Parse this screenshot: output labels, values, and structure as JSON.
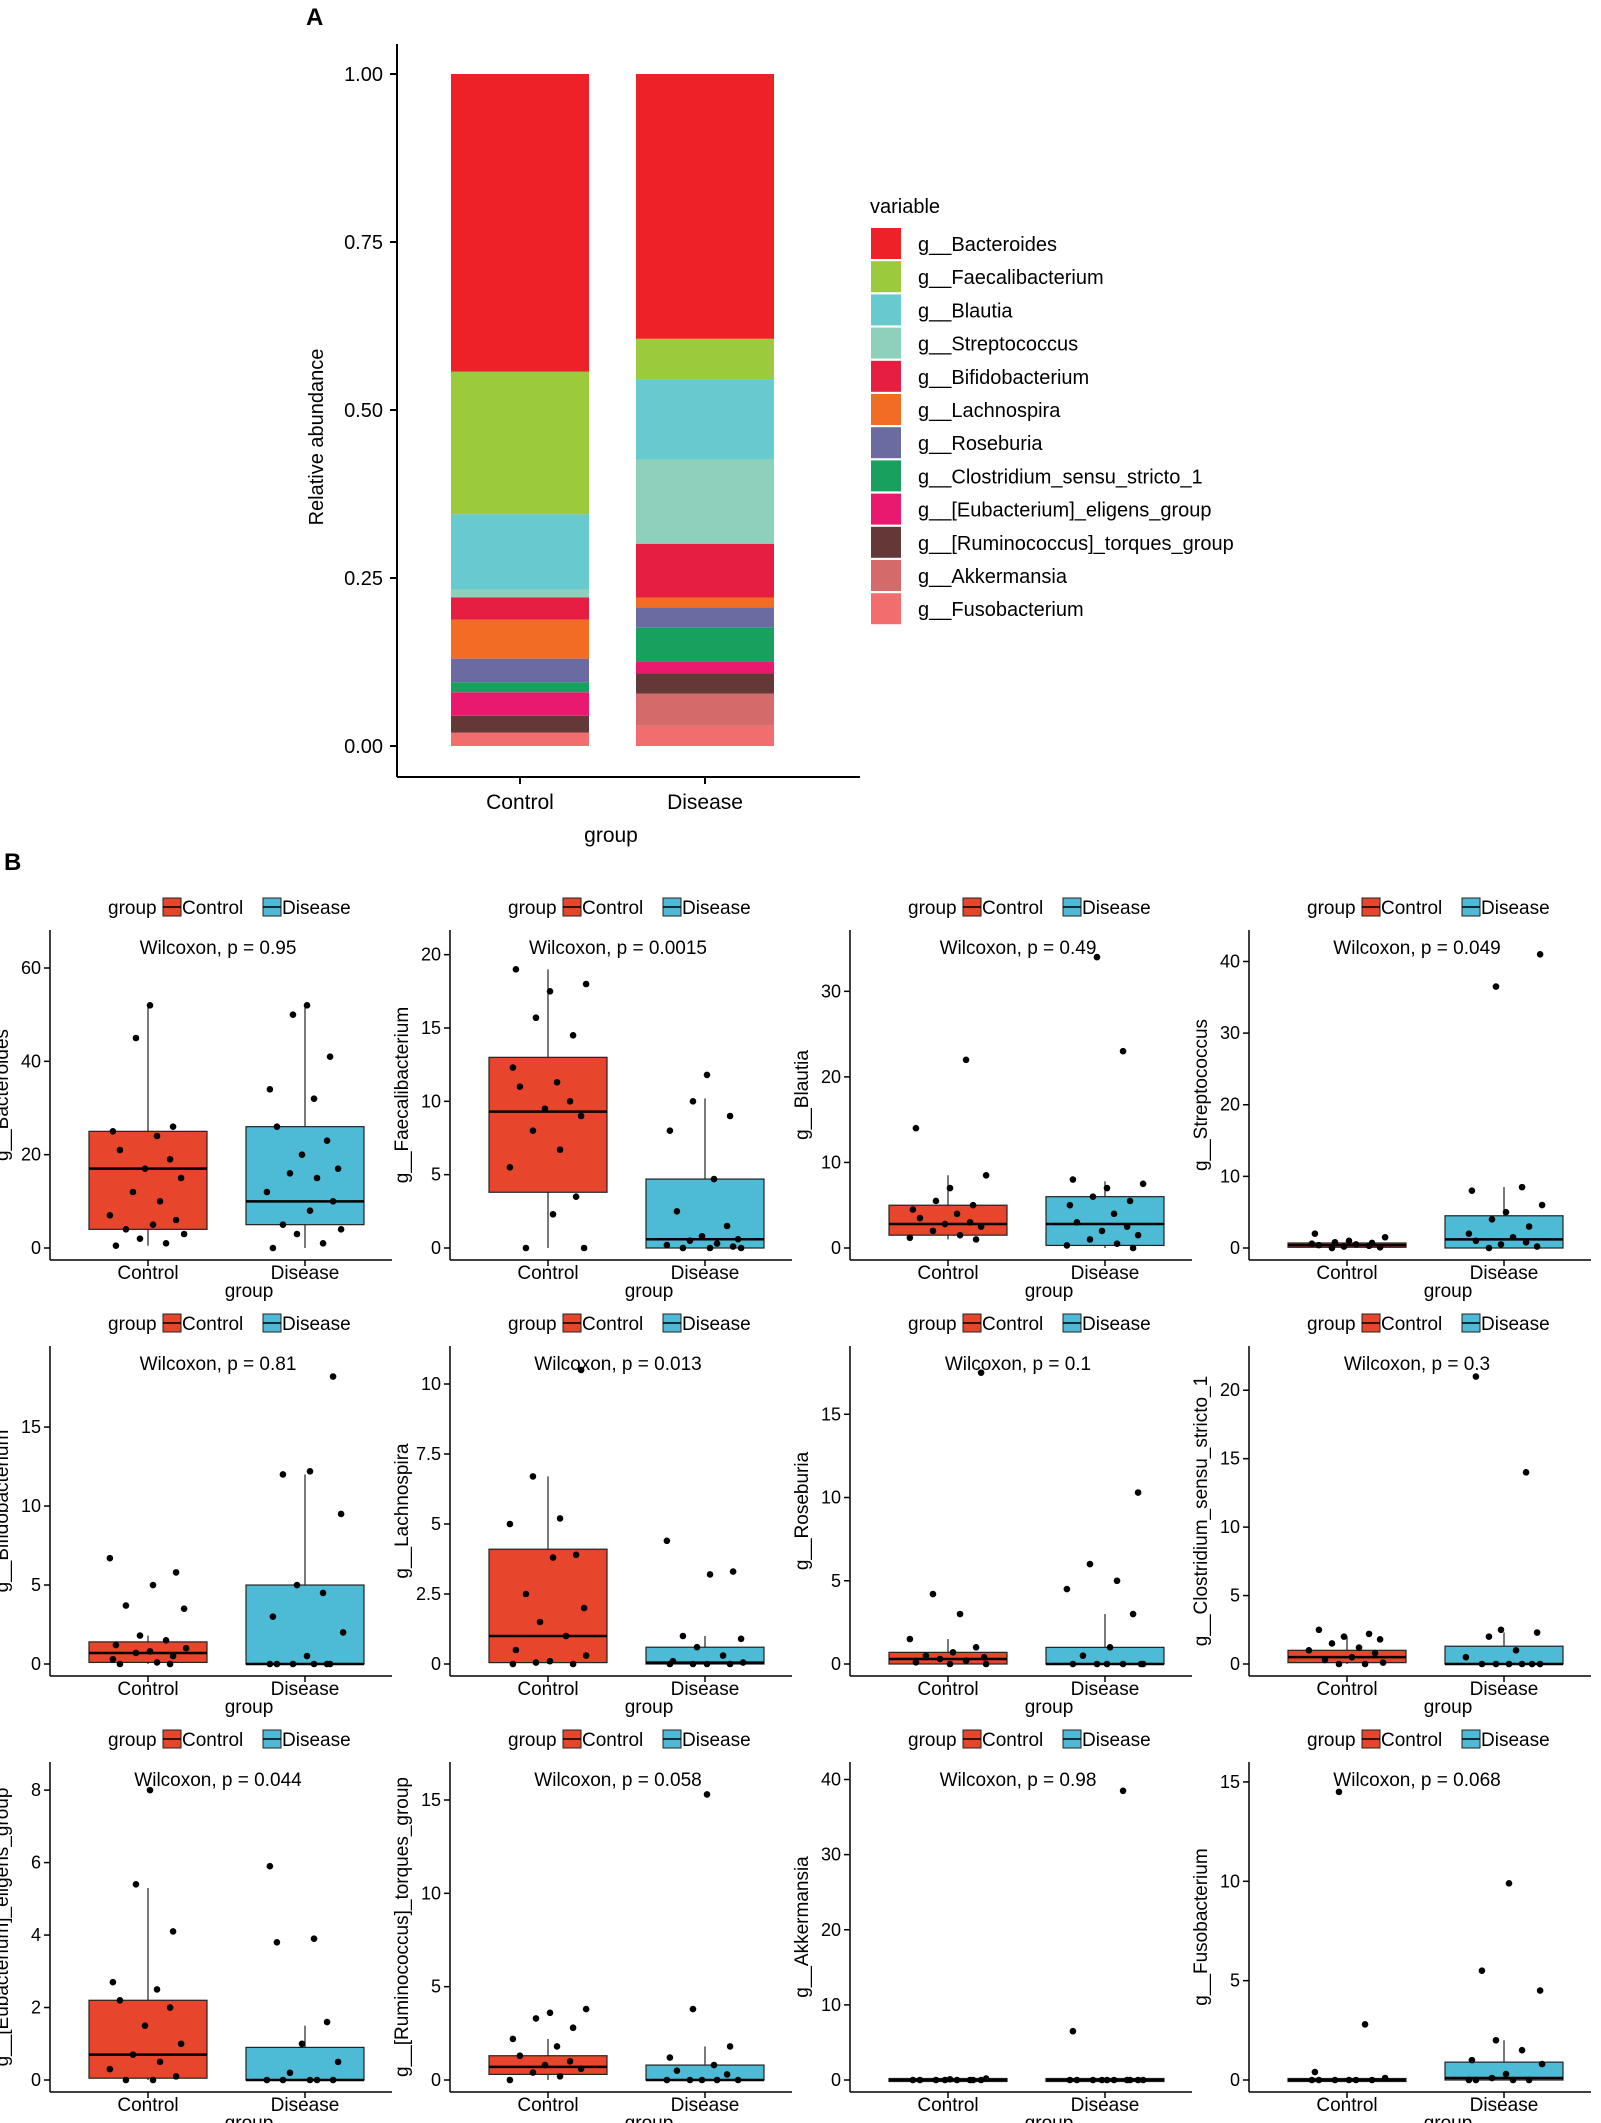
{
  "panel_labels": {
    "a": "A",
    "b": "B"
  },
  "chart_data": [
    {
      "type": "stacked_bar",
      "panel": "A",
      "title": "",
      "xlabel": "group",
      "ylabel": "Relative abundance",
      "ylim": [
        0,
        1
      ],
      "yticks": [
        "0.00",
        "0.25",
        "0.50",
        "0.75",
        "1.00"
      ],
      "categories": [
        "Control",
        "Disease"
      ],
      "legend_title": "variable",
      "legend_position": "right",
      "series": [
        {
          "name": "g__Fusobacterium",
          "color": "#F26D6D",
          "values": [
            0.02,
            0.03
          ]
        },
        {
          "name": "g__Akkermansia",
          "color": "#D46A6A",
          "values": [
            0.0,
            0.048
          ]
        },
        {
          "name": "g__[Ruminococcus]_torques_group",
          "color": "#633837",
          "values": [
            0.025,
            0.03
          ]
        },
        {
          "name": "g__[Eubacterium]_eligens_group",
          "color": "#E8196E",
          "values": [
            0.035,
            0.018
          ]
        },
        {
          "name": "g__Clostridium_sensu_stricto_1",
          "color": "#17A05E",
          "values": [
            0.015,
            0.05
          ]
        },
        {
          "name": "g__Roseburia",
          "color": "#6B6BA1",
          "values": [
            0.035,
            0.03
          ]
        },
        {
          "name": "g__Lachnospira",
          "color": "#F26D23",
          "values": [
            0.058,
            0.015
          ]
        },
        {
          "name": "g__Bifidobacterium",
          "color": "#E51E42",
          "values": [
            0.033,
            0.08
          ]
        },
        {
          "name": "g__Streptococcus",
          "color": "#8DD1BD",
          "values": [
            0.012,
            0.125
          ]
        },
        {
          "name": "g__Blautia",
          "color": "#66CACE",
          "values": [
            0.112,
            0.12
          ]
        },
        {
          "name": "g__Faecalibacterium",
          "color": "#9BCA3C",
          "values": [
            0.212,
            0.06
          ]
        },
        {
          "name": "g__Bacteroides",
          "color": "#EE2128",
          "values": [
            0.443,
            0.394
          ]
        }
      ]
    },
    {
      "type": "boxplot_grid",
      "panel": "B",
      "xlabel": "group",
      "categories": [
        "Control",
        "Disease"
      ],
      "legend_title": "group",
      "legend_position": "top",
      "colors": {
        "Control": "#E8462C",
        "Disease": "#4DBBD5"
      },
      "panels": [
        {
          "ylabel": "g__Bacteroides",
          "test": "Wilcoxon, p = 0.95",
          "ylim": [
            0,
            66
          ],
          "ticks": [
            0,
            20,
            40,
            60
          ],
          "boxes": [
            {
              "q1": 4,
              "median": 17,
              "q3": 25,
              "lo": 0.5,
              "hi": 52
            },
            {
              "q1": 5,
              "median": 10,
              "q3": 26,
              "lo": 0,
              "hi": 52
            }
          ],
          "points": [
            [
              0.5,
              1,
              2,
              3,
              4,
              5,
              6,
              7,
              10,
              12,
              15,
              17,
              19,
              21,
              24,
              25,
              26,
              45,
              52
            ],
            [
              0,
              1,
              3,
              4,
              5,
              8,
              10,
              12,
              15,
              16,
              17,
              20,
              23,
              26,
              32,
              34,
              41,
              50,
              52
            ]
          ]
        },
        {
          "ylabel": "g__Faecalibacterium",
          "test": "Wilcoxon, p = 0.0015",
          "ylim": [
            0,
            21
          ],
          "ticks": [
            0,
            5,
            10,
            15,
            20
          ],
          "boxes": [
            {
              "q1": 3.8,
              "median": 9.3,
              "q3": 13,
              "lo": 0,
              "hi": 19
            },
            {
              "q1": 0,
              "median": 0.6,
              "q3": 4.7,
              "lo": 0,
              "hi": 10.2
            }
          ],
          "points": [
            [
              0,
              0,
              2.3,
              3.5,
              5.5,
              6.7,
              8,
              9,
              9.5,
              10,
              11,
              11.3,
              12.3,
              14.5,
              15.7,
              17.5,
              18,
              19
            ],
            [
              0,
              0,
              0,
              0.1,
              0.2,
              0.3,
              0.5,
              0.6,
              0.8,
              1.5,
              2.5,
              4.7,
              8,
              9,
              10,
              11.8
            ]
          ]
        },
        {
          "ylabel": "g__Blautia",
          "test": "Wilcoxon, p = 0.49",
          "ylim": [
            0,
            36
          ],
          "ticks": [
            0,
            10,
            20,
            30
          ],
          "boxes": [
            {
              "q1": 1.5,
              "median": 2.8,
              "q3": 5,
              "lo": 1,
              "hi": 8.5
            },
            {
              "q1": 0.3,
              "median": 2.8,
              "q3": 6,
              "lo": 0,
              "hi": 7.8
            }
          ],
          "points": [
            [
              1,
              1.2,
              1.5,
              2,
              2.5,
              2.8,
              3,
              3.5,
              4,
              4.5,
              5,
              5.5,
              7,
              8.5,
              14,
              22
            ],
            [
              0,
              0.3,
              0.5,
              1,
              1.5,
              2,
              2.5,
              3,
              4,
              5,
              5.5,
              6,
              7,
              7.5,
              8,
              23,
              34
            ]
          ]
        },
        {
          "ylabel": "g__Streptococcus",
          "test": "Wilcoxon, p = 0.049",
          "ylim": [
            0,
            43
          ],
          "ticks": [
            0,
            10,
            20,
            30,
            40
          ],
          "boxes": [
            {
              "q1": 0.1,
              "median": 0.4,
              "q3": 0.7,
              "lo": 0,
              "hi": 1
            },
            {
              "q1": 0,
              "median": 1.2,
              "q3": 4.5,
              "lo": 0,
              "hi": 8.5
            }
          ],
          "points": [
            [
              0,
              0.1,
              0.2,
              0.3,
              0.4,
              0.5,
              0.6,
              0.7,
              0.8,
              1,
              1.5,
              2
            ],
            [
              0,
              0.2,
              0.5,
              0.8,
              1,
              1.5,
              2,
              3,
              4,
              5,
              6,
              8,
              8.5,
              36.5,
              41
            ]
          ]
        },
        {
          "ylabel": "g__Bifidobacterium",
          "test": "Wilcoxon, p = 0.81",
          "ylim": [
            0,
            19.5
          ],
          "ticks": [
            0,
            5,
            10,
            15
          ],
          "boxes": [
            {
              "q1": 0.1,
              "median": 0.7,
              "q3": 1.4,
              "lo": 0,
              "hi": 1.8
            },
            {
              "q1": 0,
              "median": 0,
              "q3": 5,
              "lo": 0,
              "hi": 12
            }
          ],
          "points": [
            [
              0,
              0,
              0.1,
              0.3,
              0.5,
              0.7,
              0.8,
              1,
              1.2,
              1.5,
              1.8,
              3.5,
              3.7,
              5,
              5.8,
              6.7
            ],
            [
              0,
              0,
              0,
              0,
              0,
              0,
              0.5,
              2,
              3,
              4.5,
              5,
              9.5,
              12,
              12.2,
              18.2
            ]
          ]
        },
        {
          "ylabel": "g__Lachnospira",
          "test": "Wilcoxon, p = 0.013",
          "ylim": [
            0,
            11
          ],
          "ticks": [
            0,
            2.5,
            5.0,
            7.5,
            10.0
          ],
          "boxes": [
            {
              "q1": 0.05,
              "median": 1,
              "q3": 4.1,
              "lo": 0,
              "hi": 6.7
            },
            {
              "q1": 0,
              "median": 0.05,
              "q3": 0.6,
              "lo": 0,
              "hi": 1
            }
          ],
          "points": [
            [
              0,
              0,
              0.05,
              0.1,
              0.3,
              0.5,
              1,
              1.5,
              2,
              2.5,
              3.8,
              3.9,
              5,
              5.2,
              6.7,
              10.5
            ],
            [
              0,
              0,
              0,
              0,
              0.05,
              0.1,
              0.3,
              0.6,
              0.9,
              1,
              3.2,
              3.3,
              4.4
            ]
          ]
        },
        {
          "ylabel": "g__Roseburia",
          "test": "Wilcoxon, p = 0.1",
          "ylim": [
            0,
            18.5
          ],
          "ticks": [
            0,
            5,
            10,
            15
          ],
          "boxes": [
            {
              "q1": 0,
              "median": 0.3,
              "q3": 0.7,
              "lo": 0,
              "hi": 1.5
            },
            {
              "q1": 0,
              "median": 0,
              "q3": 1,
              "lo": 0,
              "hi": 3
            }
          ],
          "points": [
            [
              0,
              0,
              0.1,
              0.2,
              0.3,
              0.4,
              0.5,
              0.7,
              1,
              1.5,
              3,
              4.2,
              17.5
            ],
            [
              0,
              0,
              0,
              0,
              0,
              0,
              0.5,
              1,
              3,
              4.5,
              5,
              6,
              10.3
            ]
          ]
        },
        {
          "ylabel": "g__Clostridium_sensu_stricto_1",
          "test": "Wilcoxon, p = 0.3",
          "ylim": [
            0,
            22.5
          ],
          "ticks": [
            0,
            5,
            10,
            15,
            20
          ],
          "boxes": [
            {
              "q1": 0.1,
              "median": 0.5,
              "q3": 1,
              "lo": 0,
              "hi": 2
            },
            {
              "q1": 0,
              "median": 0,
              "q3": 1.3,
              "lo": 0,
              "hi": 2.3
            }
          ],
          "points": [
            [
              0,
              0,
              0.1,
              0.3,
              0.5,
              0.8,
              1,
              1.2,
              1.5,
              1.8,
              2,
              2.2,
              2.5
            ],
            [
              0,
              0,
              0,
              0,
              0,
              0,
              0.5,
              1,
              2,
              2.3,
              2.5,
              14,
              21
            ]
          ]
        },
        {
          "ylabel": "g__[Eubacterium]_eligens_group",
          "test": "Wilcoxon, p = 0.044",
          "ylim": [
            0,
            8.5
          ],
          "ticks": [
            0,
            2,
            4,
            6,
            8
          ],
          "boxes": [
            {
              "q1": 0.05,
              "median": 0.7,
              "q3": 2.2,
              "lo": 0,
              "hi": 5.3
            },
            {
              "q1": 0,
              "median": 0,
              "q3": 0.9,
              "lo": 0,
              "hi": 1.5
            }
          ],
          "points": [
            [
              0,
              0,
              0.1,
              0.3,
              0.5,
              0.7,
              1,
              1.5,
              2,
              2.2,
              2.5,
              2.7,
              4.1,
              5.4,
              8
            ],
            [
              0,
              0,
              0,
              0,
              0,
              0.2,
              0.5,
              1,
              1.6,
              3.8,
              3.9,
              5.9
            ]
          ]
        },
        {
          "ylabel": "g__[Ruminococcus]_torques_group",
          "test": "Wilcoxon, p = 0.058",
          "ylim": [
            0,
            16.5
          ],
          "ticks": [
            0,
            5,
            10,
            15
          ],
          "boxes": [
            {
              "q1": 0.3,
              "median": 0.7,
              "q3": 1.3,
              "lo": 0,
              "hi": 2.2
            },
            {
              "q1": 0,
              "median": 0,
              "q3": 0.8,
              "lo": 0,
              "hi": 1.8
            }
          ],
          "points": [
            [
              0,
              0.2,
              0.4,
              0.6,
              0.8,
              1,
              1.3,
              1.8,
              2.2,
              2.8,
              3.3,
              3.6,
              3.8
            ],
            [
              0,
              0,
              0,
              0,
              0,
              0.3,
              0.5,
              0.8,
              1.2,
              1.8,
              3.8,
              15.3
            ]
          ]
        },
        {
          "ylabel": "g__Akkermansia",
          "test": "Wilcoxon, p = 0.98",
          "ylim": [
            0,
            41
          ],
          "ticks": [
            0,
            10,
            20,
            30,
            40
          ],
          "boxes": [
            {
              "q1": 0,
              "median": 0,
              "q3": 0,
              "lo": 0,
              "hi": 0
            },
            {
              "q1": 0,
              "median": 0,
              "q3": 0,
              "lo": 0,
              "hi": 0
            }
          ],
          "points": [
            [
              0,
              0,
              0,
              0,
              0,
              0,
              0,
              0,
              0.1,
              0.2
            ],
            [
              0,
              0,
              0,
              0,
              0,
              0,
              0,
              0,
              0,
              0,
              6.5,
              38.5
            ]
          ]
        },
        {
          "ylabel": "g__Fusobacterium",
          "test": "Wilcoxon, p = 0.068",
          "ylim": [
            0,
            15.5
          ],
          "ticks": [
            0,
            5,
            10,
            15
          ],
          "boxes": [
            {
              "q1": 0,
              "median": 0,
              "q3": 0,
              "lo": 0,
              "hi": 0
            },
            {
              "q1": 0,
              "median": 0.1,
              "q3": 0.9,
              "lo": 0,
              "hi": 2
            }
          ],
          "points": [
            [
              0,
              0,
              0,
              0,
              0,
              0,
              0.1,
              0.4,
              2.8,
              14.5
            ],
            [
              0,
              0,
              0,
              0,
              0.1,
              0.3,
              0.8,
              1,
              1.5,
              2,
              4.5,
              5.5,
              9.9
            ]
          ]
        }
      ]
    }
  ]
}
